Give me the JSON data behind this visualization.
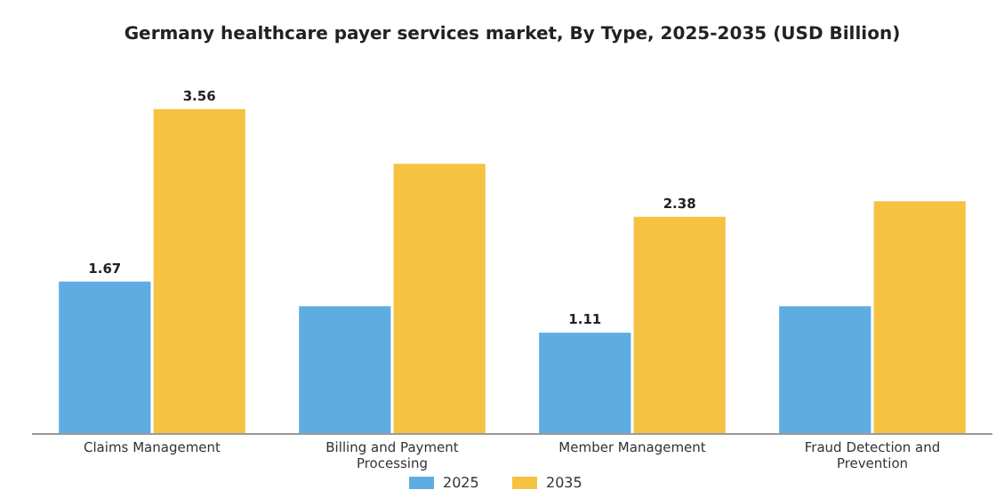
{
  "chart_data": {
    "type": "bar",
    "title": "Germany healthcare payer services market, By Type, 2025-2035 (USD Billion)",
    "categories": [
      "Claims Management",
      "Billing and Payment Processing",
      "Member Management",
      "Fraud Detection and Prevention"
    ],
    "series": [
      {
        "name": "2025",
        "color": "#5dade2",
        "values": [
          1.67,
          1.4,
          1.11,
          1.4
        ],
        "value_labels": [
          "1.67",
          null,
          "1.11",
          null
        ]
      },
      {
        "name": "2035",
        "color": "#f5c242",
        "values": [
          3.56,
          2.96,
          2.38,
          2.55
        ],
        "value_labels": [
          "3.56",
          null,
          "2.38",
          null
        ]
      }
    ],
    "legend": "bottom",
    "grid": false
  }
}
